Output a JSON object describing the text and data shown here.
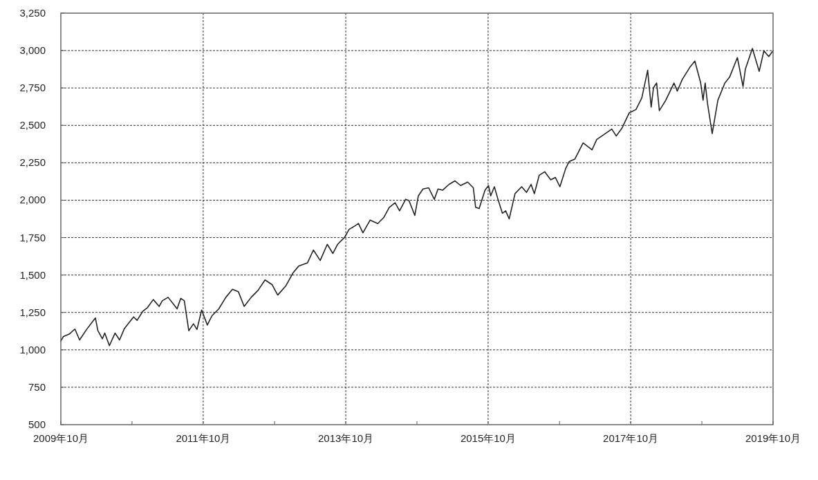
{
  "chart_data": {
    "type": "line",
    "grid": true,
    "line_style": "solid",
    "xlim": [
      "2009-10-01",
      "2019-10-01"
    ],
    "xticks": [
      {
        "value": "2009-10-01",
        "label": "2009年10月"
      },
      {
        "value": "2010-10-01",
        "label": null
      },
      {
        "value": "2011-10-01",
        "label": "2011年10月"
      },
      {
        "value": "2012-10-01",
        "label": null
      },
      {
        "value": "2013-10-01",
        "label": "2013年10月"
      },
      {
        "value": "2014-10-01",
        "label": null
      },
      {
        "value": "2015-10-01",
        "label": "2015年10月"
      },
      {
        "value": "2016-10-01",
        "label": null
      },
      {
        "value": "2017-10-01",
        "label": "2017年10月"
      },
      {
        "value": "2018-10-01",
        "label": null
      },
      {
        "value": "2019-10-01",
        "label": "2019年10月"
      }
    ],
    "ylim": [
      500,
      3250
    ],
    "yticks": [
      {
        "value": 500,
        "label": "500"
      },
      {
        "value": 750,
        "label": "750"
      },
      {
        "value": 1000,
        "label": "1,000"
      },
      {
        "value": 1250,
        "label": "1,250"
      },
      {
        "value": 1500,
        "label": "1,500"
      },
      {
        "value": 1750,
        "label": "1,750"
      },
      {
        "value": 2000,
        "label": "2,000"
      },
      {
        "value": 2250,
        "label": "2,250"
      },
      {
        "value": 2500,
        "label": "2,500"
      },
      {
        "value": 2750,
        "label": "2,750"
      },
      {
        "value": 3000,
        "label": "3,000"
      },
      {
        "value": 3250,
        "label": "3,250"
      }
    ],
    "series": [
      {
        "color": "#222222",
        "x": [
          "2009-10-01",
          "2009-10-14",
          "2009-11-13",
          "2009-12-12",
          "2010-01-05",
          "2010-02-10",
          "2010-03-27",
          "2010-04-09",
          "2010-05-02",
          "2010-05-14",
          "2010-06-07",
          "2010-07-06",
          "2010-07-29",
          "2010-08-23",
          "2010-10-09",
          "2010-10-27",
          "2010-11-26",
          "2010-12-19",
          "2011-01-18",
          "2011-02-17",
          "2011-03-05",
          "2011-04-04",
          "2011-05-20",
          "2011-06-08",
          "2011-06-26",
          "2011-07-19",
          "2011-08-12",
          "2011-08-30",
          "2011-09-23",
          "2011-10-22",
          "2011-11-15",
          "2011-12-20",
          "2012-01-25",
          "2012-02-28",
          "2012-03-29",
          "2012-04-28",
          "2012-06-03",
          "2012-07-08",
          "2012-08-13",
          "2012-09-18",
          "2012-10-17",
          "2012-11-28",
          "2013-01-03",
          "2013-02-01",
          "2013-03-19",
          "2013-04-18",
          "2013-05-23",
          "2013-06-28",
          "2013-07-27",
          "2013-08-20",
          "2013-09-25",
          "2013-10-18",
          "2013-11-17",
          "2013-12-05",
          "2013-12-28",
          "2014-02-03",
          "2014-03-14",
          "2014-04-13",
          "2014-05-12",
          "2014-06-11",
          "2014-07-04",
          "2014-08-04",
          "2014-08-21",
          "2014-09-20",
          "2014-10-08",
          "2014-11-01",
          "2014-11-30",
          "2014-12-29",
          "2015-01-17",
          "2015-02-10",
          "2015-03-15",
          "2015-04-14",
          "2015-05-13",
          "2015-06-18",
          "2015-07-17",
          "2015-07-29",
          "2015-08-16",
          "2015-09-15",
          "2015-10-03",
          "2015-10-14",
          "2015-11-02",
          "2015-11-19",
          "2015-12-13",
          "2015-12-30",
          "2016-01-17",
          "2016-02-16",
          "2016-03-21",
          "2016-04-15",
          "2016-05-08",
          "2016-05-25",
          "2016-06-19",
          "2016-07-17",
          "2016-08-17",
          "2016-09-10",
          "2016-10-03",
          "2016-11-02",
          "2016-11-20",
          "2016-12-19",
          "2017-01-30",
          "2017-03-17",
          "2017-04-10",
          "2017-05-15",
          "2017-06-26",
          "2017-07-19",
          "2017-08-18",
          "2017-09-23",
          "2017-10-28",
          "2017-11-27",
          "2017-12-27",
          "2018-01-14",
          "2018-01-26",
          "2018-02-11",
          "2018-02-25",
          "2018-03-30",
          "2018-05-11",
          "2018-05-28",
          "2018-06-22",
          "2018-08-02",
          "2018-08-26",
          "2018-09-25",
          "2018-10-07",
          "2018-10-18",
          "2018-10-30",
          "2018-11-23",
          "2018-12-22",
          "2019-01-27",
          "2019-02-20",
          "2019-04-01",
          "2019-04-30",
          "2019-05-12",
          "2019-06-17",
          "2019-07-22",
          "2019-08-15",
          "2019-09-09",
          "2019-10-01"
        ],
        "values": [
          1059,
          1089,
          1105,
          1139,
          1066,
          1136,
          1213,
          1128,
          1074,
          1112,
          1028,
          1112,
          1066,
          1143,
          1220,
          1197,
          1259,
          1282,
          1336,
          1290,
          1328,
          1351,
          1274,
          1344,
          1328,
          1128,
          1174,
          1136,
          1266,
          1166,
          1228,
          1274,
          1351,
          1405,
          1389,
          1290,
          1351,
          1397,
          1467,
          1436,
          1366,
          1428,
          1513,
          1559,
          1582,
          1667,
          1597,
          1705,
          1644,
          1705,
          1752,
          1805,
          1828,
          1844,
          1782,
          1867,
          1844,
          1883,
          1952,
          1983,
          1929,
          2006,
          1998,
          1898,
          2029,
          2075,
          2083,
          2006,
          2075,
          2067,
          2106,
          2129,
          2098,
          2121,
          2083,
          1952,
          1944,
          2067,
          2098,
          2029,
          2090,
          2013,
          1913,
          1929,
          1875,
          2044,
          2090,
          2052,
          2106,
          2044,
          2167,
          2190,
          2136,
          2152,
          2090,
          2213,
          2259,
          2275,
          2383,
          2337,
          2406,
          2437,
          2475,
          2429,
          2483,
          2583,
          2606,
          2683,
          2868,
          2622,
          2752,
          2783,
          2599,
          2668,
          2783,
          2729,
          2806,
          2891,
          2930,
          2783,
          2668,
          2783,
          2645,
          2445,
          2668,
          2783,
          2822,
          2953,
          2760,
          2876,
          3014,
          2861,
          2998,
          2960,
          2999
        ]
      }
    ]
  }
}
